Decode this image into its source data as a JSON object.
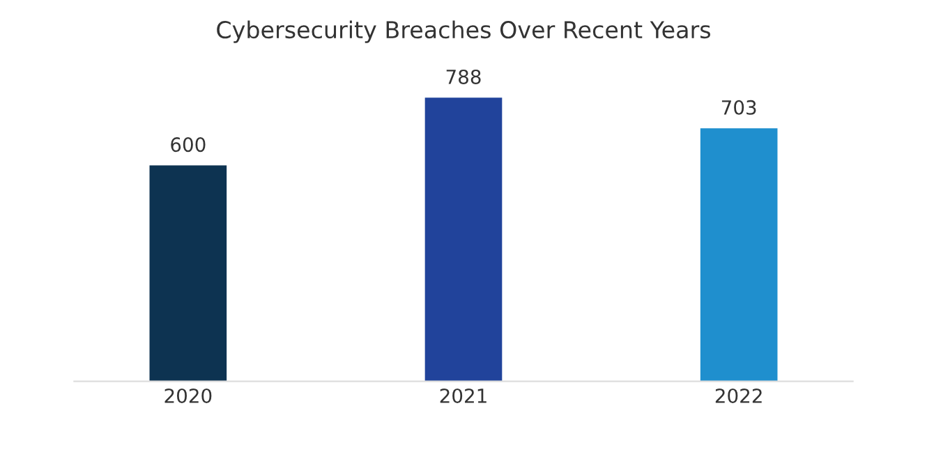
{
  "chart_data": {
    "type": "bar",
    "title": "Cybersecurity Breaches Over Recent Years",
    "categories": [
      "2020",
      "2021",
      "2022"
    ],
    "values": [
      600,
      788,
      703
    ],
    "colors": [
      "#0d3351",
      "#21439b",
      "#1f8fce"
    ],
    "data_labels": true,
    "grid": false,
    "legend": false
  }
}
